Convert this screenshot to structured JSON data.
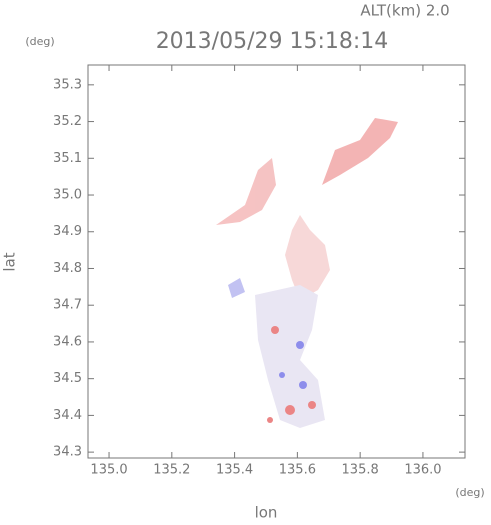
{
  "chart_data": {
    "type": "map",
    "title": "2013/05/29 15:18:14",
    "annotation": "ALT(km)  2.0",
    "x_label": "lon",
    "y_label": "lat",
    "x_unit": "(deg)",
    "y_unit": "(deg)",
    "xlim": [
      134.933,
      136.134
    ],
    "ylim": [
      34.284,
      35.354
    ],
    "xticks": [
      {
        "value": 135.0,
        "label": "135.0"
      },
      135.2,
      135.4,
      135.6,
      135.8,
      {
        "value": 136.0,
        "label": "136.0"
      }
    ],
    "yticks": [
      35.3,
      35.2,
      35.1,
      {
        "value": 35.0,
        "label": "35.0"
      },
      34.9,
      34.8,
      34.7,
      34.6,
      34.5,
      34.4,
      34.3
    ]
  }
}
